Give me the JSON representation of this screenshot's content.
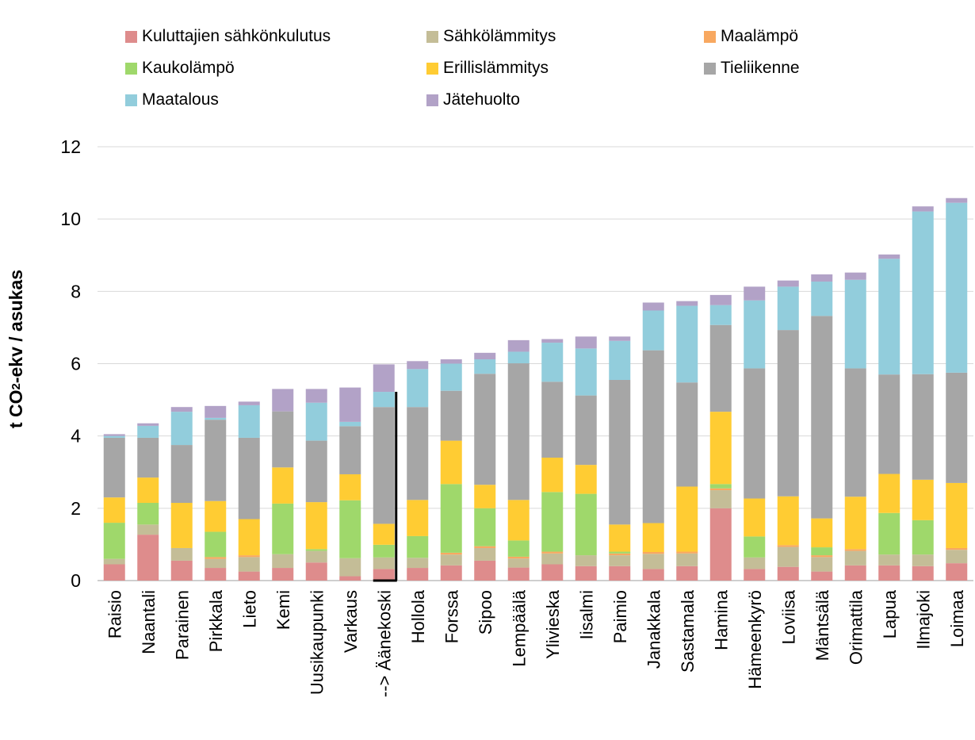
{
  "chart_data": {
    "type": "bar",
    "stacked": true,
    "ylabel": "t CO₂-ekv / asukas",
    "ylabel_parts": {
      "pre": "t CO",
      "sub": "2",
      "post": "-ekv / asukas"
    },
    "ylim": [
      0,
      12
    ],
    "yticks": [
      "0",
      "2",
      "4",
      "6",
      "8",
      "10",
      "12"
    ],
    "grid": true,
    "legend_position": "top",
    "categories": [
      "Raisio",
      "Naantali",
      "Parainen",
      "Pirkkala",
      "Lieto",
      "Kemi",
      "Uusikaupunki",
      "Varkaus",
      "--> Äänekoski",
      "Hollola",
      "Forssa",
      "Sipoo",
      "Lempäälä",
      "Ylivieska",
      "Iisalmi",
      "Paimio",
      "Janakkala",
      "Sastamala",
      "Hamina",
      "Hämeenkyrö",
      "Loviisa",
      "Mäntsälä",
      "Orimattila",
      "Lapua",
      "Ilmajoki",
      "Loimaa"
    ],
    "highlight_category": "--> Äänekoski",
    "series": [
      {
        "name": "Kuluttajien sähkönkulutus",
        "color": "#de8c8c",
        "values": [
          0.45,
          1.27,
          0.55,
          0.35,
          0.25,
          0.35,
          0.5,
          0.12,
          0.32,
          0.35,
          0.42,
          0.55,
          0.36,
          0.45,
          0.4,
          0.4,
          0.32,
          0.4,
          2.0,
          0.32,
          0.38,
          0.25,
          0.42,
          0.42,
          0.4,
          0.48
        ]
      },
      {
        "name": "Sähkölämmitys",
        "color": "#c4bd97",
        "values": [
          0.15,
          0.28,
          0.35,
          0.25,
          0.4,
          0.38,
          0.32,
          0.5,
          0.32,
          0.28,
          0.3,
          0.35,
          0.25,
          0.3,
          0.3,
          0.3,
          0.42,
          0.35,
          0.5,
          0.32,
          0.55,
          0.4,
          0.4,
          0.3,
          0.32,
          0.37
        ]
      },
      {
        "name": "Maalämpö",
        "color": "#f8a860",
        "values": [
          0.0,
          0.0,
          0.0,
          0.05,
          0.05,
          0.0,
          0.0,
          0.0,
          0.0,
          0.0,
          0.05,
          0.05,
          0.05,
          0.05,
          0.0,
          0.05,
          0.05,
          0.05,
          0.05,
          0.0,
          0.05,
          0.05,
          0.05,
          0.0,
          0.0,
          0.05
        ]
      },
      {
        "name": "Kaukolämpö",
        "color": "#9fd86b",
        "values": [
          1.0,
          0.6,
          0.0,
          0.7,
          0.0,
          1.4,
          0.05,
          1.6,
          0.35,
          0.6,
          1.9,
          1.05,
          0.45,
          1.65,
          1.7,
          0.05,
          0.0,
          0.0,
          0.12,
          0.58,
          0.0,
          0.22,
          0.0,
          1.15,
          0.95,
          0.0
        ]
      },
      {
        "name": "Erillislämmitys",
        "color": "#ffcc33",
        "values": [
          0.7,
          0.7,
          1.25,
          0.85,
          1.0,
          1.0,
          1.3,
          0.72,
          0.58,
          1.0,
          1.2,
          0.65,
          1.12,
          0.95,
          0.8,
          0.75,
          0.8,
          1.8,
          2.0,
          1.05,
          1.35,
          0.8,
          1.45,
          1.08,
          1.12,
          1.8
        ]
      },
      {
        "name": "Tieliikenne",
        "color": "#a6a6a6",
        "values": [
          1.65,
          1.1,
          1.6,
          2.25,
          2.25,
          1.55,
          1.7,
          1.33,
          3.23,
          2.57,
          1.38,
          3.07,
          3.78,
          2.1,
          1.92,
          4.0,
          4.78,
          2.88,
          2.4,
          3.6,
          4.6,
          5.6,
          3.55,
          2.75,
          2.92,
          3.05
        ]
      },
      {
        "name": "Maatalous",
        "color": "#92cddc",
        "values": [
          0.05,
          0.33,
          0.92,
          0.05,
          0.9,
          0.0,
          1.05,
          0.12,
          0.42,
          1.05,
          0.75,
          0.4,
          0.32,
          1.08,
          1.3,
          1.08,
          1.1,
          2.12,
          0.55,
          1.88,
          1.2,
          0.95,
          2.45,
          3.2,
          4.5,
          4.7
        ]
      },
      {
        "name": "Jätehuolto",
        "color": "#b2a2c7",
        "values": [
          0.05,
          0.07,
          0.13,
          0.33,
          0.1,
          0.62,
          0.38,
          0.95,
          0.76,
          0.22,
          0.12,
          0.18,
          0.32,
          0.1,
          0.33,
          0.12,
          0.22,
          0.13,
          0.28,
          0.38,
          0.17,
          0.2,
          0.2,
          0.12,
          0.14,
          0.13
        ]
      }
    ]
  }
}
